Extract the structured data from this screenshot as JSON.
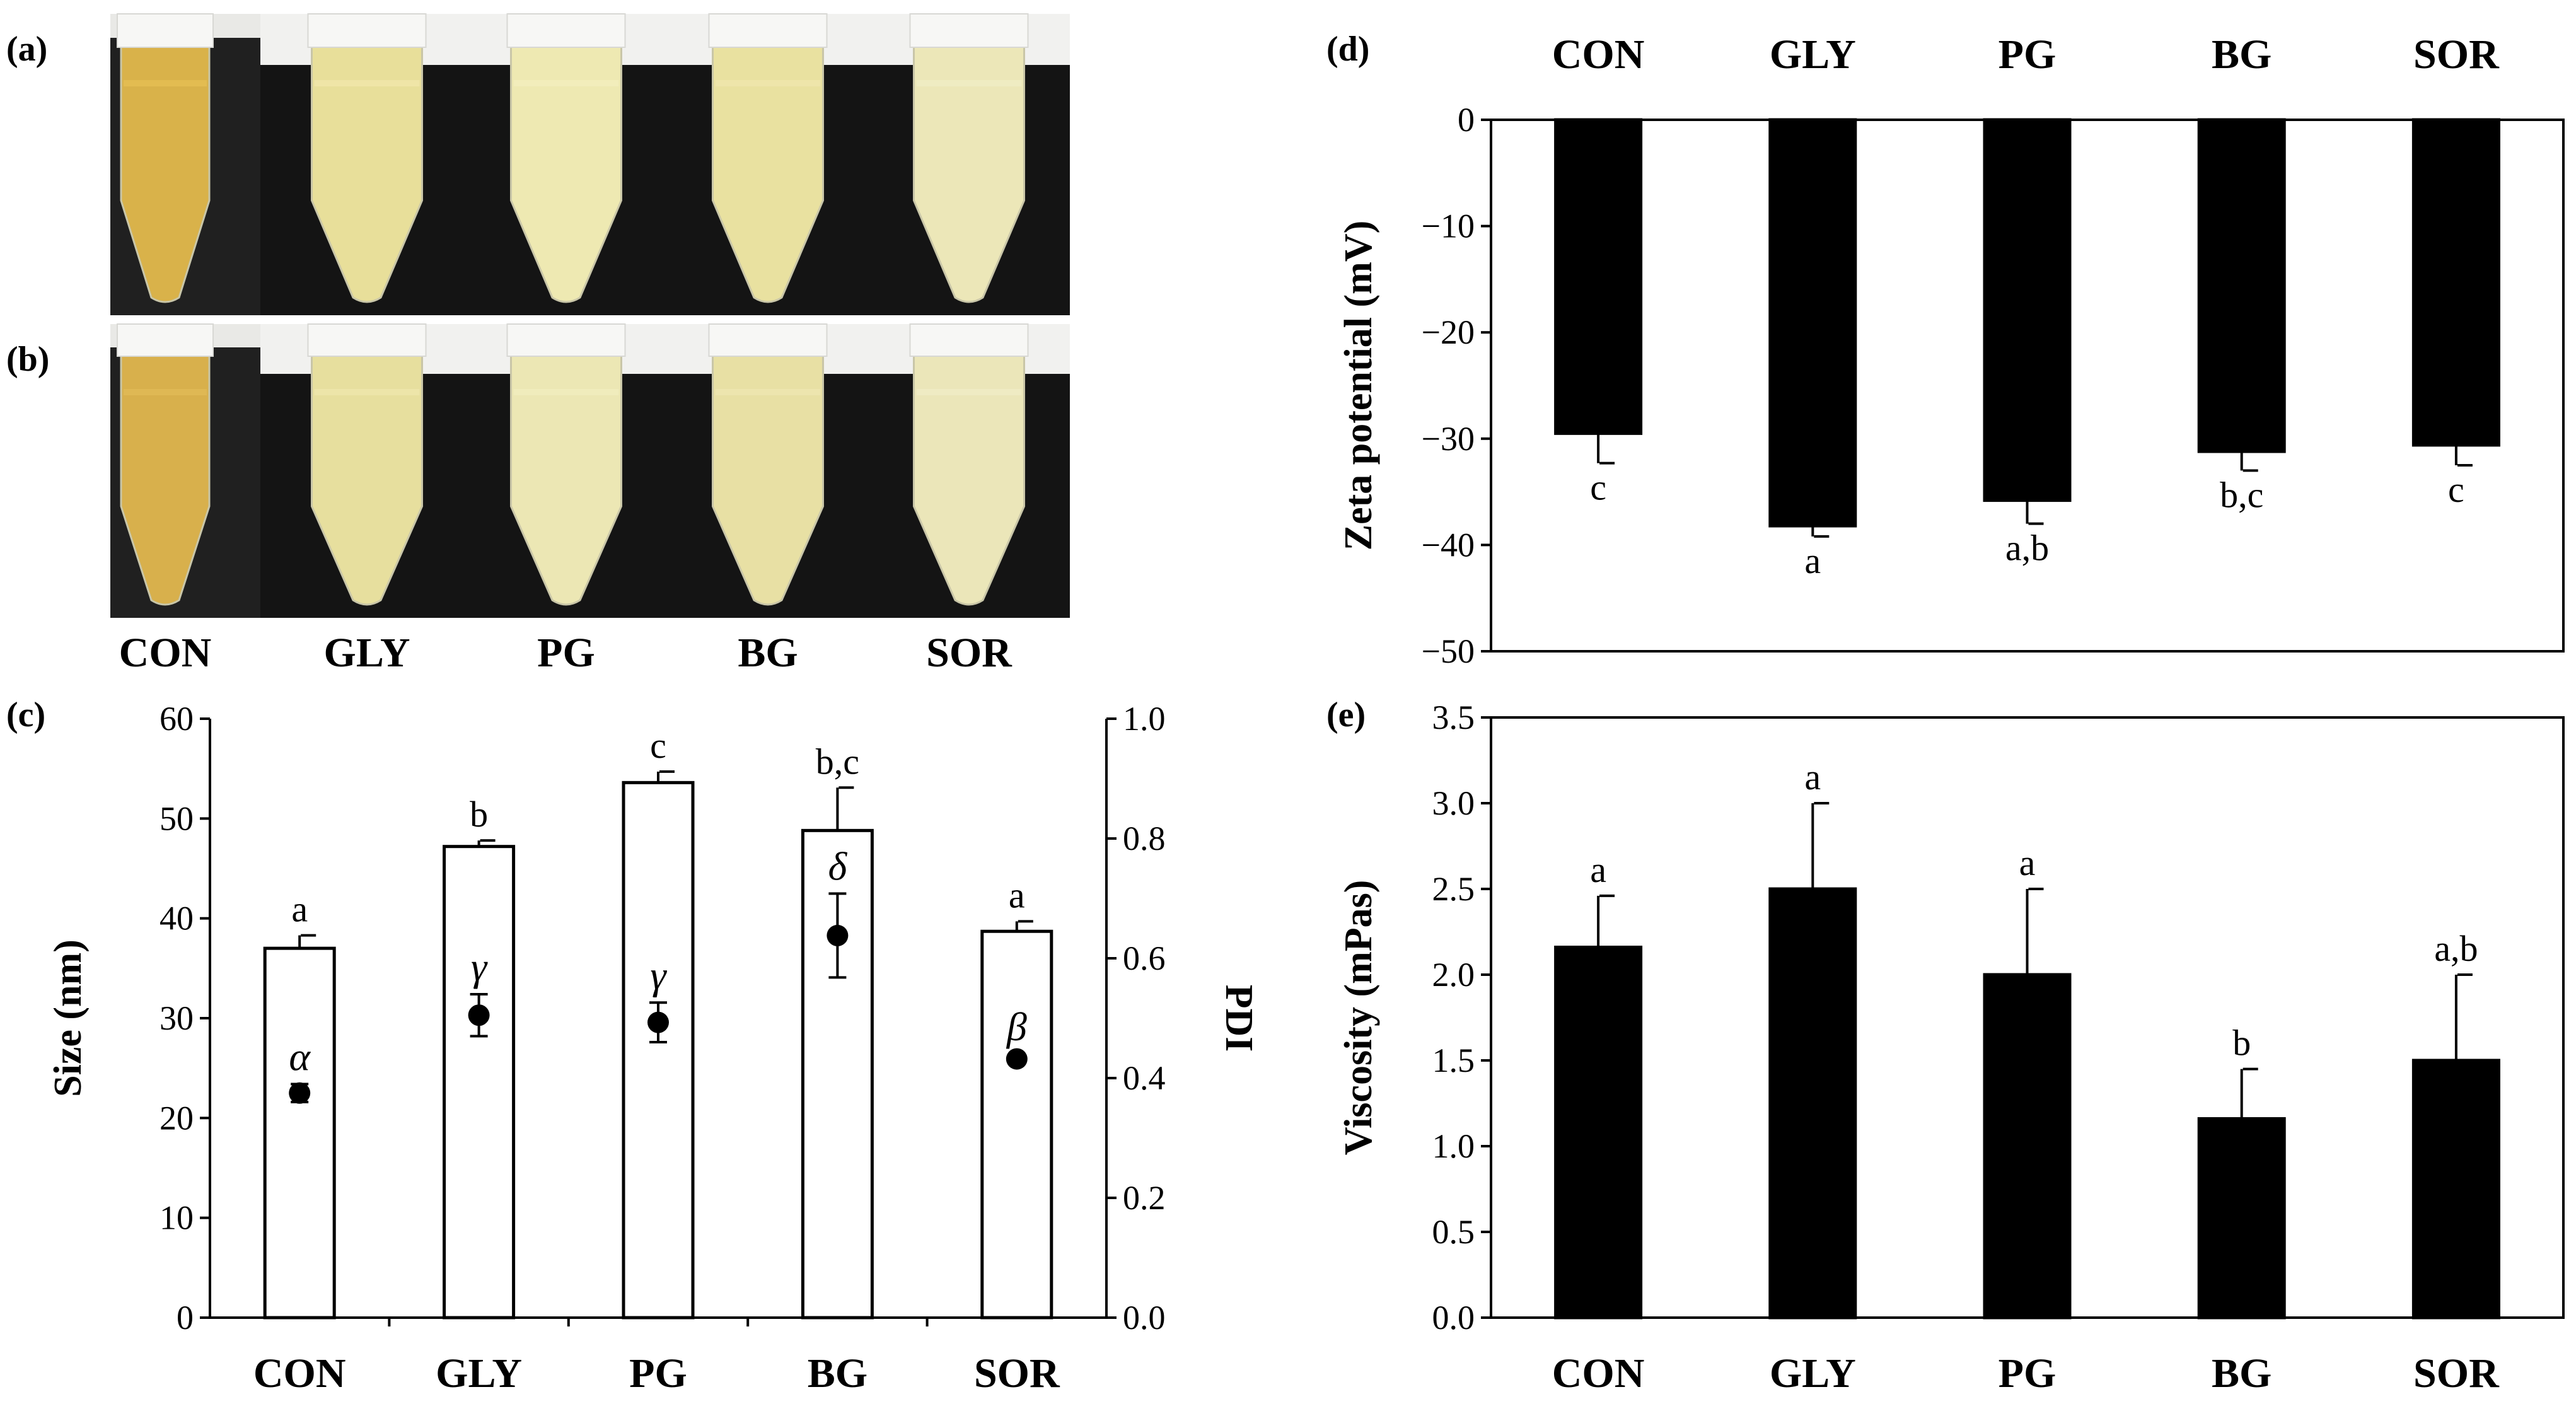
{
  "photos": [
    {
      "panel": "(a)",
      "tubes": [
        {
          "group": "CON",
          "color": "#d9b24a",
          "liquid": "#e3bd52"
        },
        {
          "group": "GLY",
          "color": "#e8df9a",
          "liquid": "#efe6a8"
        },
        {
          "group": "PG",
          "color": "#eee9b2",
          "liquid": "#f2edbb"
        },
        {
          "group": "BG",
          "color": "#e9e1a0",
          "liquid": "#eee6ab"
        },
        {
          "group": "SOR",
          "color": "#ece7b8",
          "liquid": "#f0ecc3"
        }
      ]
    },
    {
      "panel": "(b)",
      "tubes": [
        {
          "group": "CON",
          "color": "#d8b04c",
          "liquid": "#e0b955"
        },
        {
          "group": "GLY",
          "color": "#e7df9e",
          "liquid": "#ede5aa"
        },
        {
          "group": "PG",
          "color": "#ece7b4",
          "liquid": "#f1ecbd"
        },
        {
          "group": "BG",
          "color": "#e8e0a4",
          "liquid": "#ede6af"
        },
        {
          "group": "SOR",
          "color": "#ebe6b9",
          "liquid": "#f0ebc4"
        }
      ]
    }
  ],
  "photo_group_labels": [
    "CON",
    "GLY",
    "PG",
    "BG",
    "SOR"
  ],
  "chart_data": [
    {
      "panel": "(c)",
      "type": "bar",
      "categories": [
        "CON",
        "GLY",
        "PG",
        "BG",
        "SOR"
      ],
      "ylabel": "Size (nm)",
      "ylim": [
        0,
        60
      ],
      "yticks": [
        0,
        10,
        20,
        30,
        40,
        50,
        60
      ],
      "ytick_labels": [
        "0",
        "10",
        "20",
        "30",
        "40",
        "50",
        "60"
      ],
      "bar_color": "#ffffff",
      "series": [
        {
          "name": "Size (nm)",
          "values": [
            37.0,
            47.2,
            53.6,
            48.8,
            38.7
          ],
          "errors": [
            1.3,
            0.6,
            1.1,
            4.3,
            1.0
          ],
          "letters": [
            "a",
            "b",
            "c",
            "b,c",
            "a"
          ]
        }
      ],
      "y2label": "PDI",
      "y2lim": [
        0.0,
        1.0
      ],
      "y2ticks": [
        0.0,
        0.2,
        0.4,
        0.6,
        0.8,
        1.0
      ],
      "y2tick_labels": [
        "0.0",
        "0.2",
        "0.4",
        "0.6",
        "0.8",
        "1.0"
      ],
      "series2": [
        {
          "name": "PDI",
          "values": [
            0.375,
            0.505,
            0.493,
            0.638,
            0.432
          ],
          "errors": [
            0.015,
            0.035,
            0.033,
            0.07,
            0.008
          ],
          "letters": [
            "α",
            "γ",
            "γ",
            "δ",
            "β"
          ]
        }
      ]
    },
    {
      "panel": "(d)",
      "type": "bar",
      "categories": [
        "CON",
        "GLY",
        "PG",
        "BG",
        "SOR"
      ],
      "ylabel": "Zeta potential (mV)",
      "ylim": [
        -50,
        0
      ],
      "yticks": [
        0,
        -10,
        -20,
        -30,
        -40,
        -50
      ],
      "ytick_labels": [
        "0",
        "−10",
        "−20",
        "−30",
        "−40",
        "−50"
      ],
      "bar_color": "#000000",
      "series": [
        {
          "name": "Zeta potential (mV)",
          "values": [
            -29.5,
            -38.2,
            -35.8,
            -31.2,
            -30.6
          ],
          "errors": [
            2.8,
            1.0,
            2.2,
            1.8,
            1.9
          ],
          "letters": [
            "c",
            "a",
            "a,b",
            "b,c",
            "c"
          ]
        }
      ]
    },
    {
      "panel": "(e)",
      "type": "bar",
      "categories": [
        "CON",
        "GLY",
        "PG",
        "BG",
        "SOR"
      ],
      "ylabel": "Viscosity (mPas)",
      "ylim": [
        0.0,
        3.5
      ],
      "yticks": [
        0.0,
        0.5,
        1.0,
        1.5,
        2.0,
        2.5,
        3.0,
        3.5
      ],
      "ytick_labels": [
        "0.0",
        "0.5",
        "1.0",
        "1.5",
        "2.0",
        "2.5",
        "3.0",
        "3.5"
      ],
      "bar_color": "#000000",
      "series": [
        {
          "name": "Viscosity (mPas)",
          "values": [
            2.16,
            2.5,
            2.0,
            1.16,
            1.5
          ],
          "errors": [
            0.3,
            0.5,
            0.5,
            0.29,
            0.5
          ],
          "letters": [
            "a",
            "a",
            "a",
            "b",
            "a,b"
          ]
        }
      ]
    }
  ]
}
